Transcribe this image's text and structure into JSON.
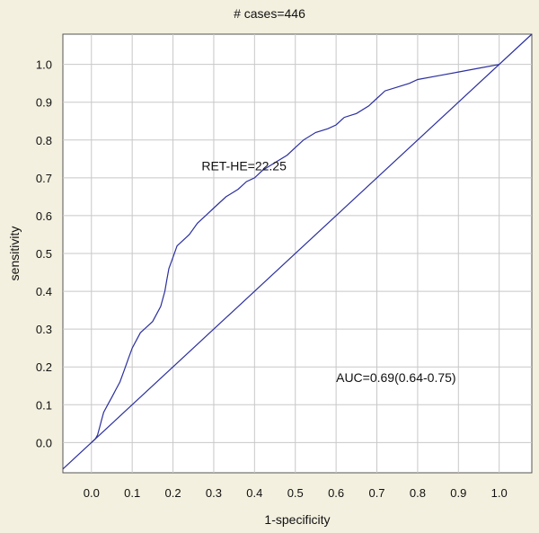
{
  "chart_data": {
    "type": "line",
    "title": "# cases=446",
    "xlabel": "1-specificity",
    "ylabel": "sensitivity",
    "xlim": [
      -0.07,
      1.08
    ],
    "ylim": [
      -0.08,
      1.08
    ],
    "xticks": [
      0.0,
      0.1,
      0.2,
      0.3,
      0.4,
      0.5,
      0.6,
      0.7,
      0.8,
      0.9,
      1.0
    ],
    "yticks": [
      0.0,
      0.1,
      0.2,
      0.3,
      0.4,
      0.5,
      0.6,
      0.7,
      0.8,
      0.9,
      1.0
    ],
    "xtick_labels": [
      "0.0",
      "0.1",
      "0.2",
      "0.3",
      "0.4",
      "0.5",
      "0.6",
      "0.7",
      "0.8",
      "0.9",
      "1.0"
    ],
    "ytick_labels": [
      "0.0",
      "0.1",
      "0.2",
      "0.3",
      "0.4",
      "0.5",
      "0.6",
      "0.7",
      "0.8",
      "0.9",
      "1.0"
    ],
    "grid": true,
    "line_color": "#2b2f9e",
    "series": [
      {
        "x": [
          0.0,
          0.01,
          0.015,
          0.02,
          0.025,
          0.03,
          0.04,
          0.05,
          0.06,
          0.07,
          0.08,
          0.09,
          0.1,
          0.11,
          0.12,
          0.13,
          0.14,
          0.15,
          0.16,
          0.17,
          0.18,
          0.185,
          0.19,
          0.2,
          0.21,
          0.22,
          0.24,
          0.26,
          0.28,
          0.3,
          0.33,
          0.36,
          0.38,
          0.4,
          0.42,
          0.45,
          0.48,
          0.5,
          0.52,
          0.55,
          0.58,
          0.6,
          0.62,
          0.65,
          0.68,
          0.7,
          0.72,
          0.75,
          0.78,
          0.8,
          0.85,
          0.9,
          0.95,
          1.0
        ],
        "y": [
          0.0,
          0.01,
          0.02,
          0.04,
          0.06,
          0.08,
          0.1,
          0.12,
          0.14,
          0.16,
          0.19,
          0.22,
          0.25,
          0.27,
          0.29,
          0.3,
          0.31,
          0.32,
          0.34,
          0.36,
          0.4,
          0.43,
          0.46,
          0.49,
          0.52,
          0.53,
          0.55,
          0.58,
          0.6,
          0.62,
          0.65,
          0.67,
          0.69,
          0.7,
          0.72,
          0.74,
          0.76,
          0.78,
          0.8,
          0.82,
          0.83,
          0.84,
          0.86,
          0.87,
          0.89,
          0.91,
          0.93,
          0.94,
          0.95,
          0.96,
          0.97,
          0.98,
          0.99,
          1.0
        ]
      },
      {
        "x": [
          -0.07,
          1.08
        ],
        "y": [
          -0.07,
          1.08
        ]
      }
    ],
    "annotations": [
      {
        "text": "RET-HE=22.25",
        "x": 0.27,
        "y": 0.72
      },
      {
        "text": "AUC=0.69(0.64-0.75)",
        "x": 0.6,
        "y": 0.16
      }
    ]
  }
}
